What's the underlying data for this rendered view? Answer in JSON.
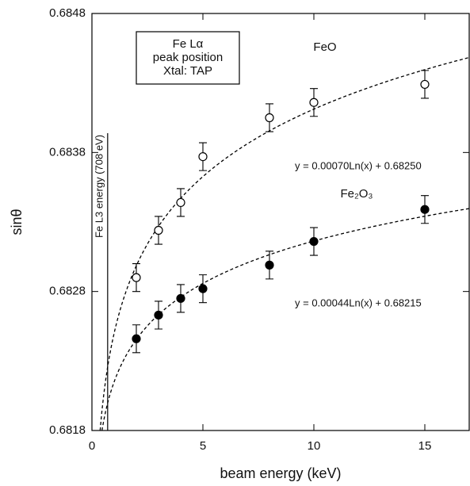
{
  "chart_data": {
    "type": "scatter",
    "x_label": "beam energy (keV)",
    "y_label": "sinθ",
    "xlim": [
      0,
      17
    ],
    "ylim": [
      0.6818,
      0.6848
    ],
    "xticks": [
      0,
      5,
      10,
      15
    ],
    "yticks": [
      0.6818,
      0.6828,
      0.6838,
      0.6848
    ],
    "box_text": [
      "Fe Lα",
      "peak position",
      "Xtal: TAP"
    ],
    "vline": {
      "x": 0.708,
      "label": "Fe L3 energy (708 eV)"
    },
    "series": [
      {
        "name": "FeO",
        "marker": "open",
        "color": "#000000",
        "x": [
          2,
          3,
          4,
          5,
          8,
          10,
          15
        ],
        "values": [
          0.6829,
          0.68324,
          0.68344,
          0.68377,
          0.68405,
          0.68416,
          0.68429
        ],
        "errors": [
          0.0001,
          0.0001,
          0.0001,
          0.0001,
          0.0001,
          0.0001,
          0.0001
        ],
        "fit": {
          "label": "y = 0.00070Ln(x) + 0.68250",
          "slope": 0.0007,
          "intercept": 0.6825
        }
      },
      {
        "name": "Fe₂O₃",
        "marker": "filled",
        "color": "#000000",
        "x": [
          2,
          3,
          4,
          5,
          8,
          10,
          15
        ],
        "values": [
          0.68246,
          0.68263,
          0.68275,
          0.68282,
          0.68299,
          0.68316,
          0.68339
        ],
        "errors": [
          0.0001,
          0.0001,
          0.0001,
          0.0001,
          0.0001,
          0.0001,
          0.0001
        ],
        "fit": {
          "label": "y = 0.00044Ln(x) + 0.68215",
          "slope": 0.00044,
          "intercept": 0.68215
        }
      }
    ]
  }
}
